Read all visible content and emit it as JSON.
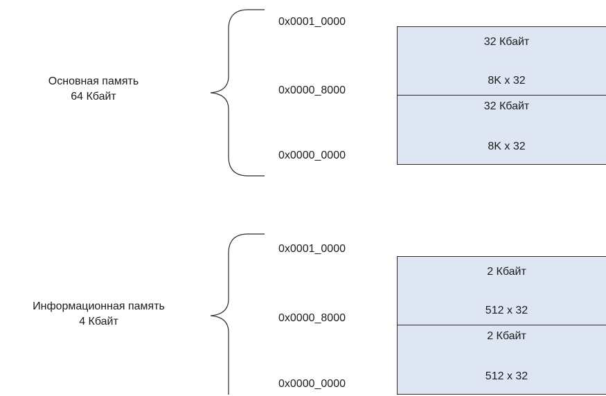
{
  "memory_map": [
    {
      "id": "main",
      "title_line1": "Основная память",
      "title_line2": "64 Кбайт",
      "addresses": [
        "0x0001_0000",
        "0x0000_8000",
        "0x0000_0000"
      ],
      "blocks": [
        {
          "size": "32 Кбайт",
          "organization": "8K x 32"
        },
        {
          "size": "32 Кбайт",
          "organization": "8K x 32"
        }
      ]
    },
    {
      "id": "info",
      "title_line1": "Информационная память",
      "title_line2": "4 Кбайт",
      "addresses": [
        "0x0001_0000",
        "0x0000_8000",
        "0x0000_0000"
      ],
      "blocks": [
        {
          "size": "2 Кбайт",
          "organization": "512 x 32"
        },
        {
          "size": "2 Кбайт",
          "organization": "512 x 32"
        }
      ]
    }
  ],
  "colors": {
    "block_fill": "#dde6f2",
    "block_border": "#2b2b2b",
    "brace_stroke": "#2b2b2b"
  },
  "icons": {
    "brace": "curly-brace-left"
  }
}
